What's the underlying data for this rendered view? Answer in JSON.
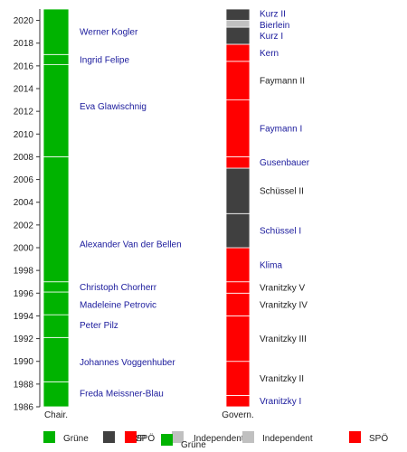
{
  "chart_data": {
    "type": "timeline",
    "y_ticks": [
      1986,
      1988,
      1990,
      1992,
      1994,
      1996,
      1998,
      2000,
      2002,
      2004,
      2006,
      2008,
      2010,
      2012,
      2014,
      2016,
      2018,
      2020
    ],
    "ylim": [
      1986,
      2021
    ],
    "columns": [
      {
        "key": "chair",
        "label": "Chair."
      },
      {
        "key": "govern",
        "label": "Govern."
      }
    ],
    "chair_terms": [
      {
        "name": "Freda Meissner-Blau",
        "start": 1986,
        "end": 1988.2,
        "party": "Grüne"
      },
      {
        "name": "Johannes Voggenhuber",
        "start": 1988.2,
        "end": 1992.1,
        "party": "Grüne"
      },
      {
        "name": "Peter Pilz",
        "start": 1992.1,
        "end": 1994.1,
        "party": "Grüne"
      },
      {
        "name": "Madeleine Petrovic",
        "start": 1994.1,
        "end": 1996.1,
        "party": "Grüne"
      },
      {
        "name": "Christoph Chorherr",
        "start": 1996.1,
        "end": 1997.0,
        "party": "Grüne"
      },
      {
        "name": "Alexander Van der Bellen",
        "start": 1997.0,
        "end": 2008.0,
        "party": "Grüne"
      },
      {
        "name": "Eva Glawischnig",
        "start": 2008.0,
        "end": 2016.1,
        "party": "Grüne"
      },
      {
        "name": "Ingrid Felipe",
        "start": 2016.1,
        "end": 2017.0,
        "party": "Grüne"
      },
      {
        "name": "Werner Kogler",
        "start": 2017.0,
        "end": 2021.0,
        "party": "Grüne"
      }
    ],
    "government_terms": [
      {
        "name": "Vranitzky I",
        "start": 1986,
        "end": 1987.0,
        "party": "SPÖ"
      },
      {
        "name": "Vranitzky II",
        "start": 1987.0,
        "end": 1990.0,
        "party": "SPÖ"
      },
      {
        "name": "Vranitzky III",
        "start": 1990.0,
        "end": 1994.0,
        "party": "SPÖ"
      },
      {
        "name": "Vranitzky IV",
        "start": 1994.0,
        "end": 1996.0,
        "party": "SPÖ"
      },
      {
        "name": "Vranitzky V",
        "start": 1996.0,
        "end": 1997.0,
        "party": "SPÖ"
      },
      {
        "name": "Klima",
        "start": 1997.0,
        "end": 2000.0,
        "party": "SPÖ"
      },
      {
        "name": "Schüssel I",
        "start": 2000.0,
        "end": 2003.0,
        "party": "ÖVP"
      },
      {
        "name": "Schüssel II",
        "start": 2003.0,
        "end": 2007.0,
        "party": "ÖVP"
      },
      {
        "name": "Gusenbauer",
        "start": 2007.0,
        "end": 2008.0,
        "party": "SPÖ"
      },
      {
        "name": "Faymann I",
        "start": 2008.0,
        "end": 2013.0,
        "party": "SPÖ"
      },
      {
        "name": "Faymann II",
        "start": 2013.0,
        "end": 2016.4,
        "party": "SPÖ"
      },
      {
        "name": "Kern",
        "start": 2016.4,
        "end": 2017.9,
        "party": "SPÖ"
      },
      {
        "name": "Kurz I",
        "start": 2017.9,
        "end": 2019.4,
        "party": "ÖVP"
      },
      {
        "name": "Bierlein",
        "start": 2019.4,
        "end": 2020.0,
        "party": "Independent"
      },
      {
        "name": "Kurz II",
        "start": 2020.0,
        "end": 2021.0,
        "party": "ÖVP"
      }
    ],
    "party_colors": {
      "Grüne": "#00b300",
      "ÖVP": "#404040",
      "SPÖ": "#ff0000",
      "Independent": "#c0c0c0"
    },
    "legend_row1": [
      {
        "text": "Grüne",
        "color": "#00b300"
      },
      {
        "text": "ÖVP",
        "color": "#404040"
      },
      {
        "text": "SPÖ",
        "color": "#ff0000"
      },
      {
        "text": "Independent",
        "color": "#c0c0c0"
      },
      {
        "text": "Independent",
        "color": "#c0c0c0"
      },
      {
        "text": "SPÖ",
        "color": "#ff0000"
      }
    ],
    "legend_row2": [
      {
        "text": "Grüne",
        "color": "#00b300"
      }
    ]
  }
}
